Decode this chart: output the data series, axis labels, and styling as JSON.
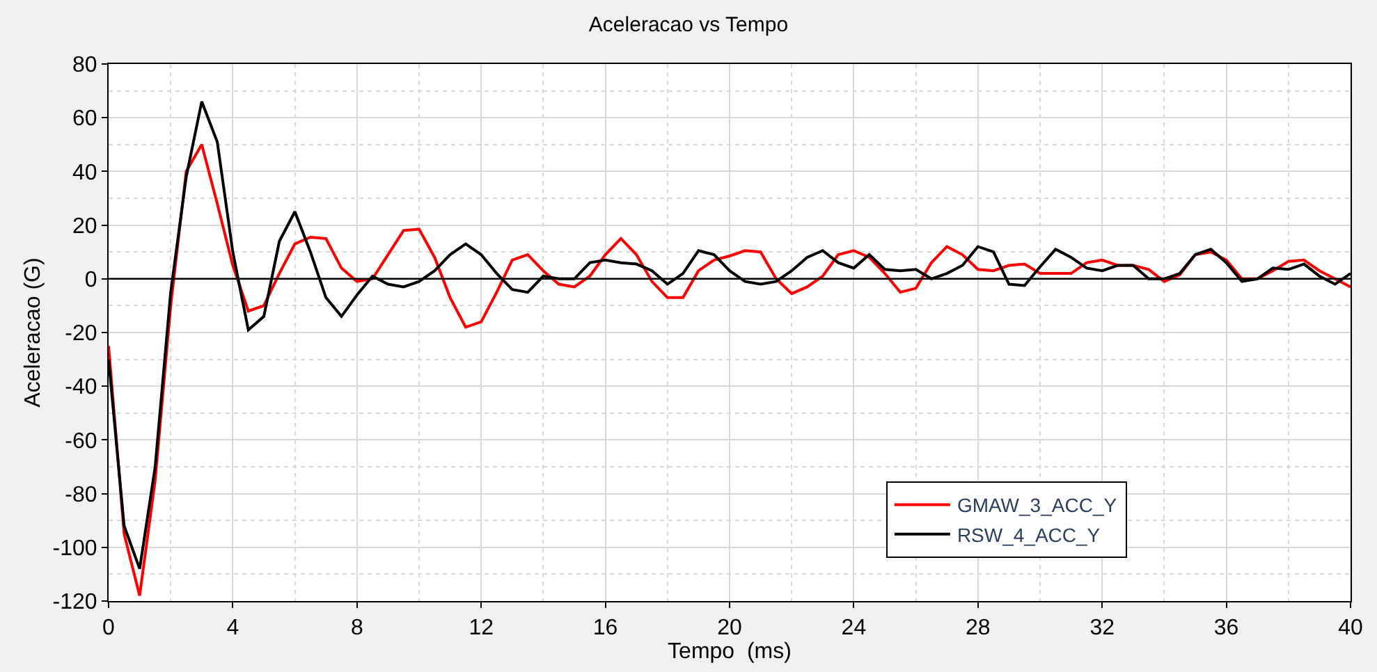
{
  "chart_data": {
    "type": "line",
    "title": "Aceleracao vs Tempo",
    "xlabel": "Tempo  (ms)",
    "ylabel": "Aceleracao (G)",
    "x": [
      0,
      0.5,
      1,
      1.5,
      2,
      2.5,
      3,
      3.5,
      4,
      4.5,
      5,
      5.5,
      6,
      6.5,
      7,
      7.5,
      8,
      8.5,
      9,
      9.5,
      10,
      10.5,
      11,
      11.5,
      12,
      12.5,
      13,
      13.5,
      14,
      14.5,
      15,
      15.5,
      16,
      16.5,
      17,
      17.5,
      18,
      18.5,
      19,
      19.5,
      20,
      20.5,
      21,
      21.5,
      22,
      22.5,
      23,
      23.5,
      24,
      24.5,
      25,
      25.5,
      26,
      26.5,
      27,
      27.5,
      28,
      28.5,
      29,
      29.5,
      30,
      30.5,
      31,
      31.5,
      32,
      32.5,
      33,
      33.5,
      34,
      34.5,
      35,
      35.5,
      36,
      36.5,
      37,
      37.5,
      38,
      38.5,
      39,
      39.5,
      40
    ],
    "series": [
      {
        "name": "GMAW_3_ACC_Y",
        "color": "#ff0000",
        "values": [
          -25,
          -95,
          -118,
          -75,
          -10,
          40,
          50,
          28,
          5,
          -12,
          -10,
          2,
          13,
          15.5,
          15,
          4,
          -1,
          0,
          9,
          18,
          18.5,
          8,
          -7,
          -18,
          -16,
          -5,
          7,
          9,
          3,
          -2,
          -3,
          1,
          9,
          15,
          9,
          -1,
          -7,
          -7,
          3,
          7,
          8.5,
          10.5,
          10,
          0,
          -5.5,
          -3,
          1,
          9,
          10.5,
          8,
          2,
          -5,
          -3.5,
          6,
          12,
          9,
          3.5,
          3,
          5,
          5.5,
          2,
          2,
          2,
          6,
          7,
          5,
          5,
          3.5,
          -1,
          1.5,
          9,
          10,
          7,
          0,
          0,
          3,
          6.5,
          7,
          3,
          0,
          -3
        ]
      },
      {
        "name": "RSW_4_ACC_Y",
        "color": "#000000",
        "values": [
          -30,
          -92,
          -108,
          -70,
          -5,
          38,
          66,
          51,
          10,
          -19,
          -14,
          14,
          25,
          10,
          -7,
          -14,
          -6,
          1,
          -2,
          -3,
          -1,
          3,
          9,
          13,
          9,
          2,
          -4,
          -5,
          1,
          0,
          0,
          6,
          7,
          6,
          5.5,
          3,
          -2,
          2,
          10.5,
          9,
          3,
          -1,
          -2,
          -1,
          3,
          8,
          10.5,
          6,
          4,
          9,
          3.5,
          3,
          3.5,
          0,
          2,
          5,
          12,
          10,
          -2,
          -2.5,
          4.5,
          11,
          8,
          4,
          3,
          5,
          5,
          0,
          0,
          2,
          9,
          11,
          6,
          -1,
          0,
          4,
          3.5,
          5.5,
          1,
          -2,
          2
        ]
      }
    ],
    "xlim": [
      0,
      40
    ],
    "xticks": [
      0,
      4,
      8,
      12,
      16,
      20,
      24,
      28,
      32,
      36,
      40
    ],
    "ylim": [
      -120,
      80
    ],
    "yticks": [
      -120,
      -100,
      -80,
      -60,
      -40,
      -20,
      0,
      20,
      40,
      60,
      80
    ],
    "grid": true,
    "legend": "bottom right",
    "marker": "none",
    "line_style": "solid"
  }
}
